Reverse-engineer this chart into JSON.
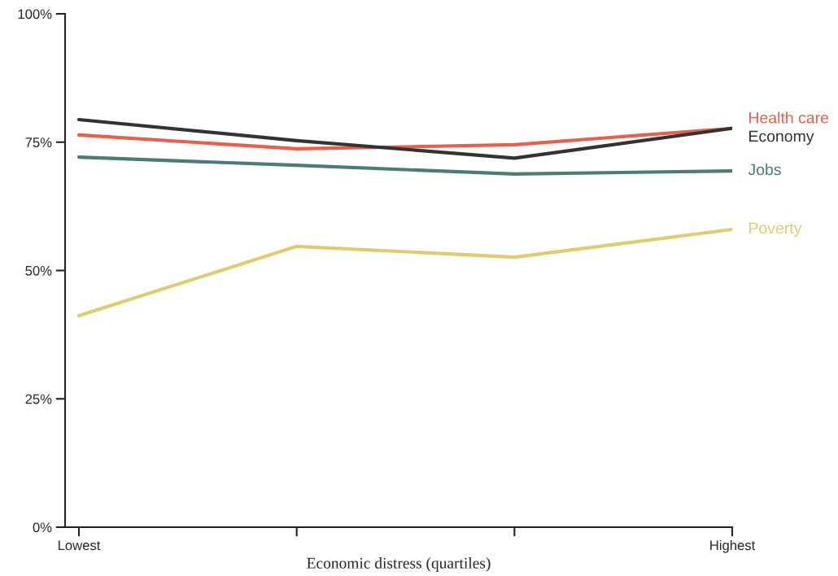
{
  "chart_data": {
    "type": "line",
    "xlabel": "Economic distress (quartiles)",
    "categories": [
      "Lowest",
      null,
      null,
      "Highest"
    ],
    "series": [
      {
        "name": "Health care",
        "color": "#e8604c",
        "values": [
          76.4,
          73.7,
          74.5,
          77.7
        ]
      },
      {
        "name": "Economy",
        "color": "#333333",
        "values": [
          79.4,
          75.3,
          71.9,
          77.7
        ]
      },
      {
        "name": "Jobs",
        "color": "#4a7c78",
        "values": [
          72.1,
          70.5,
          68.8,
          69.4
        ]
      },
      {
        "name": "Poverty",
        "color": "#e0cc6e",
        "values": [
          41.2,
          54.7,
          52.6,
          58.0
        ]
      }
    ],
    "ylim": [
      0,
      100
    ],
    "yticks": [
      {
        "value": 0,
        "label": "0%"
      },
      {
        "value": 25,
        "label": "25%"
      },
      {
        "value": 50,
        "label": "50%"
      },
      {
        "value": 75,
        "label": "75%"
      },
      {
        "value": 100,
        "label": "100%"
      }
    ],
    "grid": false,
    "legend": false,
    "marker": "none",
    "line_style": "solid"
  }
}
